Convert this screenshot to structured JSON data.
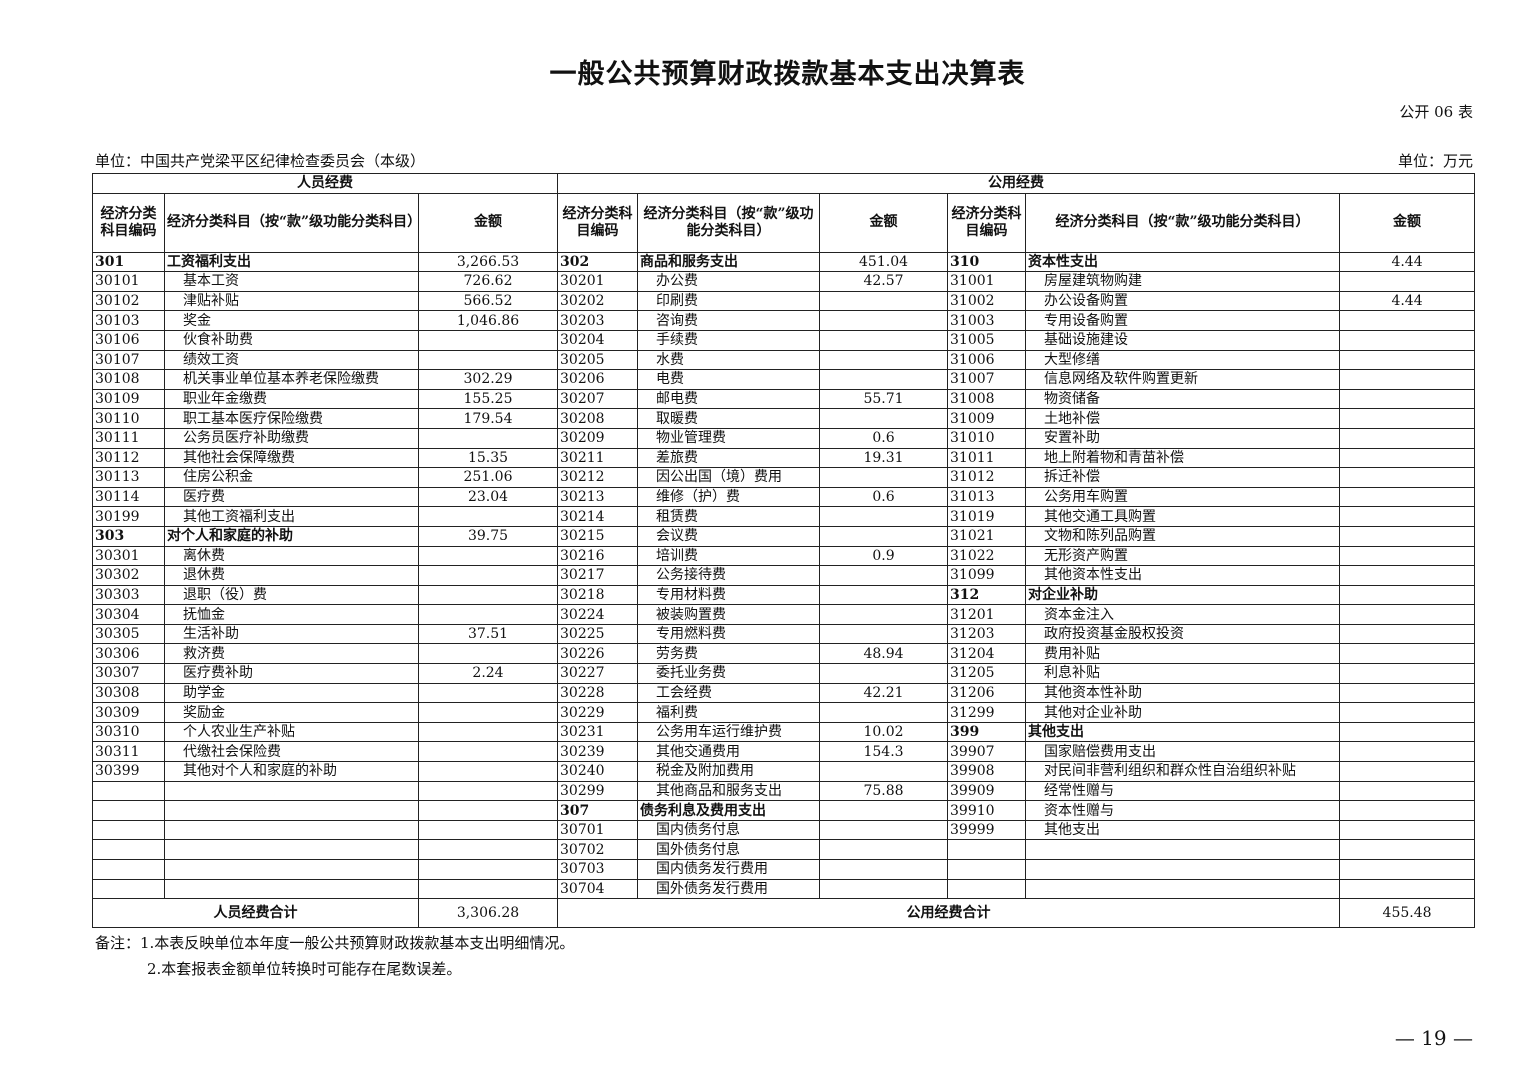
{
  "title": "一般公共预算财政拨款基本支出决算表",
  "form_no": "公开 06 表",
  "unit_org": "单位：中国共产党梁平区纪律检查委员会（本级）",
  "unit_money": "单位：万元",
  "groups": {
    "personnel": "人员经费",
    "public": "公用经费"
  },
  "headers": {
    "code": "经济分类科目编码",
    "name_left": "经济分类科目（按“款”级功能分类科目）",
    "name_mid": "经济分类科目（按“款”级功能分类科目）",
    "name_right": "经济分类科目（按“款”级功能分类科目）",
    "amount": "金额"
  },
  "left_rows": [
    [
      "301",
      "工资福利支出",
      "3,266.53",
      1
    ],
    [
      "30101",
      "基本工资",
      "726.62",
      0
    ],
    [
      "30102",
      "津贴补贴",
      "566.52",
      0
    ],
    [
      "30103",
      "奖金",
      "1,046.86",
      0
    ],
    [
      "30106",
      "伙食补助费",
      "",
      0
    ],
    [
      "30107",
      "绩效工资",
      "",
      0
    ],
    [
      "30108",
      "机关事业单位基本养老保险缴费",
      "302.29",
      0
    ],
    [
      "30109",
      "职业年金缴费",
      "155.25",
      0
    ],
    [
      "30110",
      "职工基本医疗保险缴费",
      "179.54",
      0
    ],
    [
      "30111",
      "公务员医疗补助缴费",
      "",
      0
    ],
    [
      "30112",
      "其他社会保障缴费",
      "15.35",
      0
    ],
    [
      "30113",
      "住房公积金",
      "251.06",
      0
    ],
    [
      "30114",
      "医疗费",
      "23.04",
      0
    ],
    [
      "30199",
      "其他工资福利支出",
      "",
      0
    ],
    [
      "303",
      "对个人和家庭的补助",
      "39.75",
      1
    ],
    [
      "30301",
      "离休费",
      "",
      0
    ],
    [
      "30302",
      "退休费",
      "",
      0
    ],
    [
      "30303",
      "退职（役）费",
      "",
      0
    ],
    [
      "30304",
      "抚恤金",
      "",
      0
    ],
    [
      "30305",
      "生活补助",
      "37.51",
      0
    ],
    [
      "30306",
      "救济费",
      "",
      0
    ],
    [
      "30307",
      "医疗费补助",
      "2.24",
      0
    ],
    [
      "30308",
      "助学金",
      "",
      0
    ],
    [
      "30309",
      "奖励金",
      "",
      0
    ],
    [
      "30310",
      "个人农业生产补贴",
      "",
      0
    ],
    [
      "30311",
      "代缴社会保险费",
      "",
      0
    ],
    [
      "30399",
      "其他对个人和家庭的补助",
      "",
      0
    ]
  ],
  "mid_rows": [
    [
      "302",
      "商品和服务支出",
      "451.04",
      1
    ],
    [
      "30201",
      "办公费",
      "42.57",
      0
    ],
    [
      "30202",
      "印刷费",
      "",
      0
    ],
    [
      "30203",
      "咨询费",
      "",
      0
    ],
    [
      "30204",
      "手续费",
      "",
      0
    ],
    [
      "30205",
      "水费",
      "",
      0
    ],
    [
      "30206",
      "电费",
      "",
      0
    ],
    [
      "30207",
      "邮电费",
      "55.71",
      0
    ],
    [
      "30208",
      "取暖费",
      "",
      0
    ],
    [
      "30209",
      "物业管理费",
      "0.6",
      0
    ],
    [
      "30211",
      "差旅费",
      "19.31",
      0
    ],
    [
      "30212",
      "因公出国（境）费用",
      "",
      0
    ],
    [
      "30213",
      "维修（护）费",
      "0.6",
      0
    ],
    [
      "30214",
      "租赁费",
      "",
      0
    ],
    [
      "30215",
      "会议费",
      "",
      0
    ],
    [
      "30216",
      "培训费",
      "0.9",
      0
    ],
    [
      "30217",
      "公务接待费",
      "",
      0
    ],
    [
      "30218",
      "专用材料费",
      "",
      0
    ],
    [
      "30224",
      "被装购置费",
      "",
      0
    ],
    [
      "30225",
      "专用燃料费",
      "",
      0
    ],
    [
      "30226",
      "劳务费",
      "48.94",
      0
    ],
    [
      "30227",
      "委托业务费",
      "",
      0
    ],
    [
      "30228",
      "工会经费",
      "42.21",
      0
    ],
    [
      "30229",
      "福利费",
      "",
      0
    ],
    [
      "30231",
      "公务用车运行维护费",
      "10.02",
      0
    ],
    [
      "30239",
      "其他交通费用",
      "154.3",
      0
    ],
    [
      "30240",
      "税金及附加费用",
      "",
      0
    ],
    [
      "30299",
      "其他商品和服务支出",
      "75.88",
      0
    ],
    [
      "307",
      "债务利息及费用支出",
      "",
      1
    ],
    [
      "30701",
      "国内债务付息",
      "",
      0
    ],
    [
      "30702",
      "国外债务付息",
      "",
      0
    ],
    [
      "30703",
      "国内债务发行费用",
      "",
      0
    ],
    [
      "30704",
      "国外债务发行费用",
      "",
      0
    ]
  ],
  "right_rows": [
    [
      "310",
      "资本性支出",
      "4.44",
      1
    ],
    [
      "31001",
      "房屋建筑物购建",
      "",
      0
    ],
    [
      "31002",
      "办公设备购置",
      "4.44",
      0
    ],
    [
      "31003",
      "专用设备购置",
      "",
      0
    ],
    [
      "31005",
      "基础设施建设",
      "",
      0
    ],
    [
      "31006",
      "大型修缮",
      "",
      0
    ],
    [
      "31007",
      "信息网络及软件购置更新",
      "",
      0
    ],
    [
      "31008",
      "物资储备",
      "",
      0
    ],
    [
      "31009",
      "土地补偿",
      "",
      0
    ],
    [
      "31010",
      "安置补助",
      "",
      0
    ],
    [
      "31011",
      "地上附着物和青苗补偿",
      "",
      0
    ],
    [
      "31012",
      "拆迁补偿",
      "",
      0
    ],
    [
      "31013",
      "公务用车购置",
      "",
      0
    ],
    [
      "31019",
      "其他交通工具购置",
      "",
      0
    ],
    [
      "31021",
      "文物和陈列品购置",
      "",
      0
    ],
    [
      "31022",
      "无形资产购置",
      "",
      0
    ],
    [
      "31099",
      "其他资本性支出",
      "",
      0
    ],
    [
      "312",
      "对企业补助",
      "",
      1
    ],
    [
      "31201",
      "资本金注入",
      "",
      0
    ],
    [
      "31203",
      "政府投资基金股权投资",
      "",
      0
    ],
    [
      "31204",
      "费用补贴",
      "",
      0
    ],
    [
      "31205",
      "利息补贴",
      "",
      0
    ],
    [
      "31206",
      "其他资本性补助",
      "",
      0
    ],
    [
      "31299",
      "其他对企业补助",
      "",
      0
    ],
    [
      "399",
      "其他支出",
      "",
      1
    ],
    [
      "39907",
      "国家赔偿费用支出",
      "",
      0
    ],
    [
      "39908",
      "对民间非营利组织和群众性自治组织补贴",
      "",
      0
    ],
    [
      "39909",
      "经常性赠与",
      "",
      0
    ],
    [
      "39910",
      "资本性赠与",
      "",
      0
    ],
    [
      "39999",
      "其他支出",
      "",
      0
    ]
  ],
  "totals": {
    "personnel_label": "人员经费合计",
    "personnel_amount": "3,306.28",
    "public_label": "公用经费合计",
    "public_amount": "455.48"
  },
  "notes": [
    "备注：1.本表反映单位本年度一般公共预算财政拨款基本支出明细情况。",
    "2.本套报表金额单位转换时可能存在尾数误差。"
  ],
  "page_number": "— 19 —"
}
